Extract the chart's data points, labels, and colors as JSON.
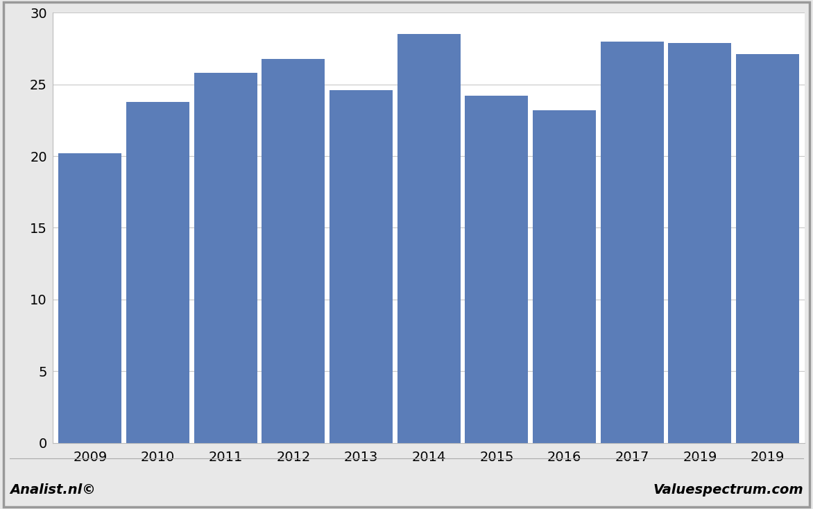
{
  "categories": [
    "2009",
    "2010",
    "2011",
    "2012",
    "2013",
    "2014",
    "2015",
    "2016",
    "2017",
    "2019",
    "2019"
  ],
  "values": [
    20.2,
    23.8,
    25.8,
    26.8,
    24.6,
    28.5,
    24.2,
    23.2,
    28.0,
    27.9,
    27.1
  ],
  "bar_color": "#5b7db8",
  "ylim": [
    0,
    30
  ],
  "yticks": [
    0,
    5,
    10,
    15,
    20,
    25,
    30
  ],
  "background_color": "#e8e8e8",
  "plot_background_color": "#ffffff",
  "footer_left": "Analist.nl©",
  "footer_right": "Valuespectrum.com",
  "grid_color": "#c8c8c8",
  "bar_width": 0.93,
  "tick_fontsize": 14,
  "footer_fontsize": 14
}
